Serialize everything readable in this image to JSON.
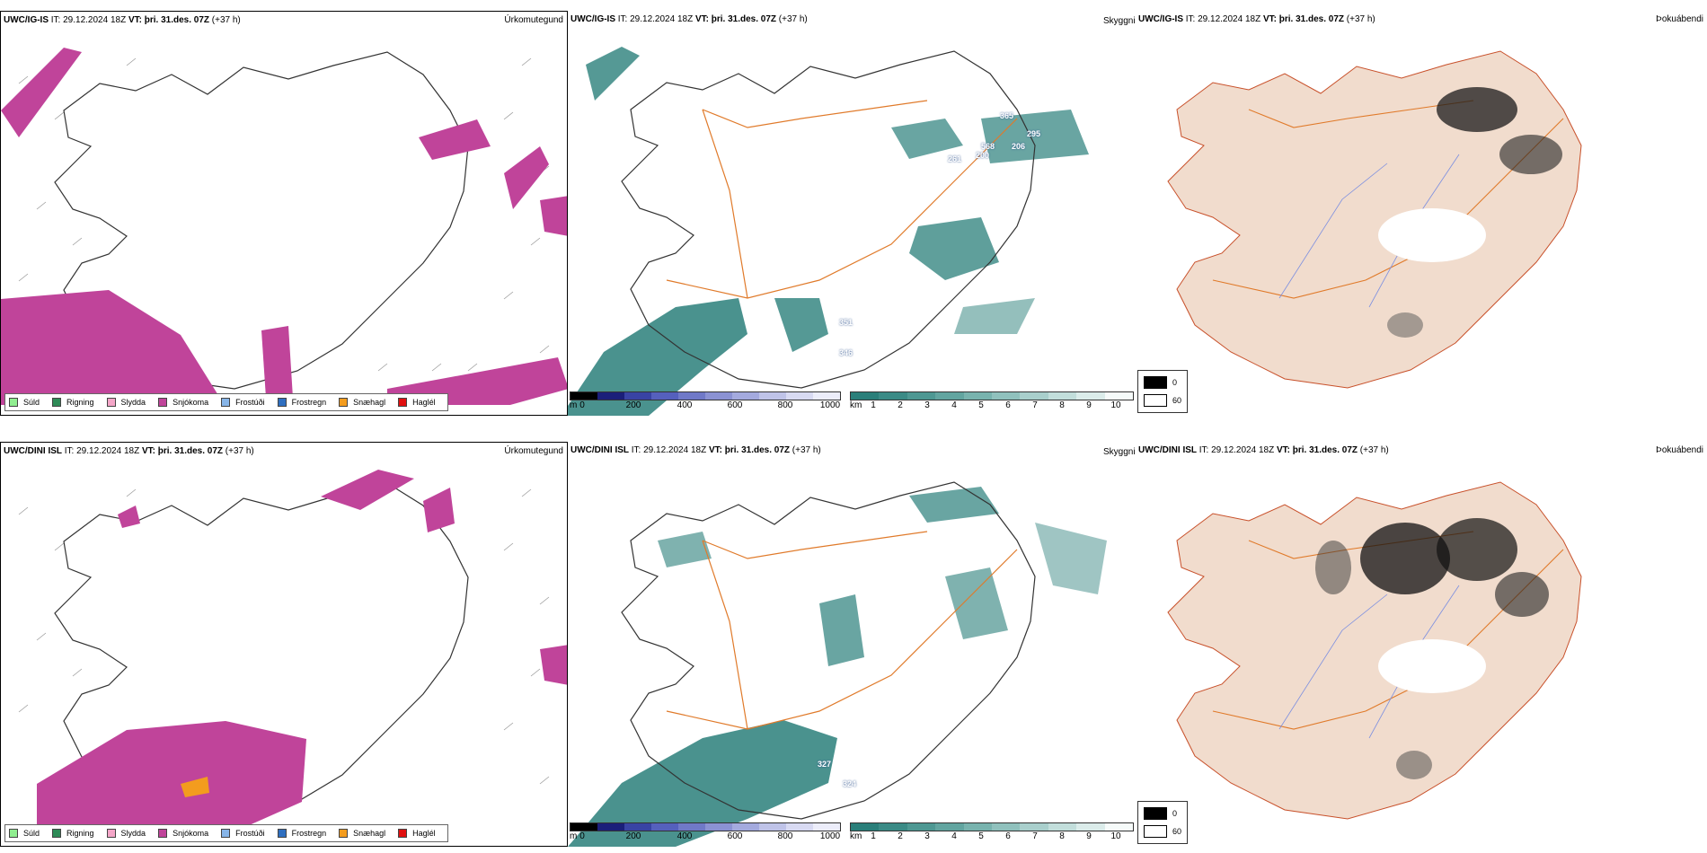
{
  "rows": [
    {
      "model": "UWC/IG-IS",
      "it_label": "IT:",
      "it_value": "29.12.2024 18Z",
      "vt_label": "VT:",
      "vt_value": "þri. 31.des. 07Z",
      "lead": "(+37 h)",
      "precip_title": "Úrkomutegund",
      "cloud_title": "Skyggni",
      "fog_title": "Þokuábendi",
      "cloud_labels": [
        "365",
        "295",
        "568",
        "206",
        "261",
        "200",
        "351",
        "346"
      ]
    },
    {
      "model": "UWC/DINI ISL",
      "it_label": "IT:",
      "it_value": "29.12.2024 18Z",
      "vt_label": "VT:",
      "vt_value": "þri. 31.des. 07Z",
      "lead": "(+37 h)",
      "precip_title": "Úrkomutegund",
      "cloud_title": "Skyggni",
      "fog_title": "Þokuábendi",
      "cloud_labels": [
        "327",
        "324"
      ]
    }
  ],
  "precip_legend": [
    {
      "label": "Súld",
      "color": "#90ee90"
    },
    {
      "label": "Rigning",
      "color": "#2e8b57"
    },
    {
      "label": "Slydda",
      "color": "#f4a6c8"
    },
    {
      "label": "Snjókoma",
      "color": "#c0449a"
    },
    {
      "label": "Frostúði",
      "color": "#87b5e8"
    },
    {
      "label": "Frostregn",
      "color": "#2f6fc0"
    },
    {
      "label": "Snæhagl",
      "color": "#f39c1e"
    },
    {
      "label": "Haglél",
      "color": "#e01010"
    }
  ],
  "base_scale": {
    "unit": "m",
    "ticks": [
      "0",
      "200",
      "400",
      "600",
      "800",
      "1000"
    ]
  },
  "vis_scale": {
    "unit": "km",
    "ticks": [
      "1",
      "2",
      "3",
      "4",
      "5",
      "6",
      "7",
      "8",
      "9",
      "10"
    ]
  },
  "fog_legend": {
    "high": "0",
    "low": "60"
  },
  "colors": {
    "snow": "#c0449a",
    "cloud_base": "#2a7f7a",
    "land_fog": "#f1dccd",
    "roads": "#e07a2a",
    "rivers": "#7c8fe0"
  }
}
